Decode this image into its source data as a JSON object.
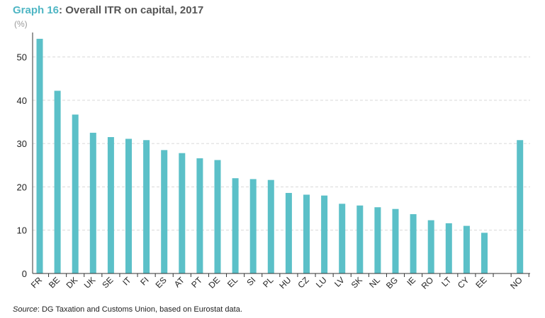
{
  "title": {
    "graph_label": "Graph 16",
    "text": ": Overall ITR on capital, 2017"
  },
  "unit_label": "(%)",
  "source": {
    "label": "Source",
    "text": ": DG Taxation and Customs Union, based on Eurostat data."
  },
  "colors": {
    "bar": "#5bc0c8",
    "title_accent": "#4fb6c4",
    "grid": "#d9d9d9"
  },
  "chart_data": {
    "type": "bar",
    "title": "Overall ITR on capital, 2017",
    "ylabel": "(%)",
    "xlabel": "",
    "ylim": [
      0,
      55
    ],
    "yticks": [
      0,
      10,
      20,
      30,
      40,
      50
    ],
    "grid": true,
    "categories": [
      "FR",
      "BE",
      "DK",
      "UK",
      "SE",
      "IT",
      "FI",
      "ES",
      "AT",
      "PT",
      "DE",
      "EL",
      "SI",
      "PL",
      "HU",
      "CZ",
      "LU",
      "LV",
      "SK",
      "NL",
      "BG",
      "IE",
      "RO",
      "LT",
      "CY",
      "EE",
      "",
      "NO"
    ],
    "values": [
      54.2,
      42.2,
      36.7,
      32.5,
      31.5,
      31.1,
      30.8,
      28.5,
      27.8,
      26.6,
      26.2,
      22.0,
      21.8,
      21.6,
      18.6,
      18.2,
      18.0,
      16.1,
      15.7,
      15.3,
      14.9,
      13.7,
      12.3,
      11.6,
      11.0,
      9.4,
      null,
      30.8
    ]
  }
}
